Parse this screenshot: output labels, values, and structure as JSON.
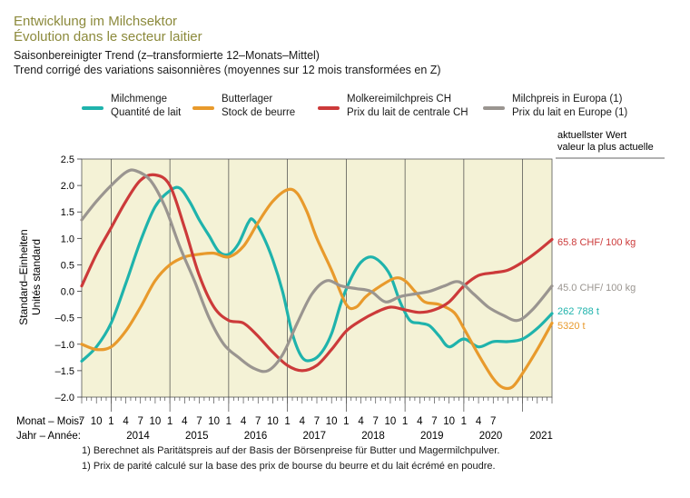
{
  "header": {
    "title_de": "Entwicklung im Milchsektor",
    "title_fr": "Évolution dans le secteur laitier",
    "subtitle_de": "Saisonbereinigter Trend (z–transformierte 12–Monats–Mittel)",
    "subtitle_fr": "Trend corrigé des variations saisonnières (moyennes sur 12 mois transformées en Z)"
  },
  "legend": [
    {
      "de": "Milchmenge",
      "fr": "Quantité de lait",
      "color": "#1fb3ac"
    },
    {
      "de": "Butterlager",
      "fr": "Stock de beurre",
      "color": "#e89a2c"
    },
    {
      "de": "Molkereimilchpreis CH",
      "fr": "Prix du lait de centrale CH",
      "color": "#cc3a3a"
    },
    {
      "de": "Milchpreis in Europa (1)",
      "fr": "Prix du lait en Europe (1)",
      "color": "#9a9590"
    }
  ],
  "current_header": {
    "de": "aktuellster Wert",
    "fr": "valeur la plus actuelle"
  },
  "end_labels": {
    "molkerei": "65.8 CHF/ 100 kg",
    "europa": "45.0 CHF/ 100 kg",
    "milchmenge": "262 788 t",
    "butter": "5320 t"
  },
  "axis": {
    "ylabel_de": "Standard–Einheiten",
    "ylabel_fr": "Unités standard",
    "month_caption": "Monat – Mois:",
    "year_caption": "Jahr – Année:",
    "month_ticks": [
      "7",
      "10",
      "1",
      "4",
      "7",
      "10",
      "1",
      "4",
      "7",
      "10",
      "1",
      "4",
      "7",
      "10",
      "1",
      "4",
      "7",
      "10",
      "1",
      "4",
      "7",
      "10",
      "1",
      "4",
      "7",
      "10",
      "1",
      "4",
      "7"
    ],
    "years": [
      "2014",
      "2015",
      "2016",
      "2017",
      "2018",
      "2019",
      "2020",
      "2021"
    ]
  },
  "footnotes": [
    "1)   Berechnet als Paritätspreis auf der Basis der Börsenpreise für Butter und Magermilchpulver.",
    "1)   Prix de parité calculé sur la base des prix de bourse du beurre et du lait écrémé en poudre."
  ],
  "chart_data": {
    "type": "line",
    "ylim": [
      -2.0,
      2.5
    ],
    "yticks": [
      "2.5",
      "2.0",
      "1.5",
      "1.0",
      "0.5",
      "0.0",
      "–0.5",
      "–1.0",
      "–1.5",
      "–2.0"
    ],
    "x_range": [
      "2013-07",
      "2021-07"
    ],
    "grid": false,
    "background": "#f4f2d6",
    "series": [
      {
        "name": "Milchmenge / Quantité de lait",
        "color": "#1fb3ac",
        "points": [
          [
            "2013-07",
            -1.32
          ],
          [
            "2013-10",
            -1.05
          ],
          [
            "2014-01",
            -0.6
          ],
          [
            "2014-04",
            0.15
          ],
          [
            "2014-07",
            0.95
          ],
          [
            "2014-10",
            1.6
          ],
          [
            "2015-01",
            1.9
          ],
          [
            "2015-03",
            1.95
          ],
          [
            "2015-05",
            1.7
          ],
          [
            "2015-07",
            1.35
          ],
          [
            "2015-09",
            1.05
          ],
          [
            "2015-11",
            0.75
          ],
          [
            "2016-01",
            0.7
          ],
          [
            "2016-03",
            0.9
          ],
          [
            "2016-05",
            1.3
          ],
          [
            "2016-06",
            1.35
          ],
          [
            "2016-08",
            1.05
          ],
          [
            "2016-10",
            0.6
          ],
          [
            "2016-12",
            0.0
          ],
          [
            "2017-02",
            -0.8
          ],
          [
            "2017-04",
            -1.25
          ],
          [
            "2017-06",
            -1.3
          ],
          [
            "2017-08",
            -1.15
          ],
          [
            "2017-10",
            -0.8
          ],
          [
            "2017-12",
            -0.2
          ],
          [
            "2018-02",
            0.25
          ],
          [
            "2018-04",
            0.55
          ],
          [
            "2018-06",
            0.65
          ],
          [
            "2018-08",
            0.55
          ],
          [
            "2018-10",
            0.3
          ],
          [
            "2018-12",
            -0.2
          ],
          [
            "2019-02",
            -0.55
          ],
          [
            "2019-04",
            -0.6
          ],
          [
            "2019-06",
            -0.65
          ],
          [
            "2019-08",
            -0.85
          ],
          [
            "2019-10",
            -1.05
          ],
          [
            "2020-01",
            -0.9
          ],
          [
            "2020-04",
            -1.05
          ],
          [
            "2020-07",
            -0.95
          ],
          [
            "2020-10",
            -0.95
          ],
          [
            "2021-01",
            -0.9
          ],
          [
            "2021-04",
            -0.7
          ],
          [
            "2021-07",
            -0.42
          ]
        ]
      },
      {
        "name": "Butterlager / Stock de beurre",
        "color": "#e89a2c",
        "points": [
          [
            "2013-07",
            -1.0
          ],
          [
            "2013-10",
            -1.1
          ],
          [
            "2014-01",
            -1.05
          ],
          [
            "2014-04",
            -0.75
          ],
          [
            "2014-07",
            -0.3
          ],
          [
            "2014-10",
            0.2
          ],
          [
            "2015-01",
            0.5
          ],
          [
            "2015-04",
            0.65
          ],
          [
            "2015-07",
            0.7
          ],
          [
            "2015-10",
            0.72
          ],
          [
            "2016-01",
            0.65
          ],
          [
            "2016-04",
            0.85
          ],
          [
            "2016-07",
            1.3
          ],
          [
            "2016-10",
            1.7
          ],
          [
            "2017-01",
            1.92
          ],
          [
            "2017-03",
            1.85
          ],
          [
            "2017-05",
            1.5
          ],
          [
            "2017-07",
            1.0
          ],
          [
            "2017-10",
            0.4
          ],
          [
            "2018-01",
            -0.25
          ],
          [
            "2018-03",
            -0.3
          ],
          [
            "2018-05",
            -0.1
          ],
          [
            "2018-08",
            0.1
          ],
          [
            "2018-11",
            0.25
          ],
          [
            "2019-01",
            0.2
          ],
          [
            "2019-03",
            0.0
          ],
          [
            "2019-05",
            -0.2
          ],
          [
            "2019-08",
            -0.25
          ],
          [
            "2019-11",
            -0.4
          ],
          [
            "2020-01",
            -0.7
          ],
          [
            "2020-04",
            -1.2
          ],
          [
            "2020-07",
            -1.65
          ],
          [
            "2020-09",
            -1.82
          ],
          [
            "2020-11",
            -1.8
          ],
          [
            "2021-01",
            -1.55
          ],
          [
            "2021-04",
            -1.1
          ],
          [
            "2021-07",
            -0.6
          ]
        ]
      },
      {
        "name": "Molkereimilchpreis CH / Prix du lait de centrale CH",
        "color": "#cc3a3a",
        "points": [
          [
            "2013-07",
            0.1
          ],
          [
            "2013-10",
            0.7
          ],
          [
            "2014-01",
            1.2
          ],
          [
            "2014-04",
            1.7
          ],
          [
            "2014-07",
            2.1
          ],
          [
            "2014-10",
            2.2
          ],
          [
            "2015-01",
            2.0
          ],
          [
            "2015-04",
            1.2
          ],
          [
            "2015-07",
            0.3
          ],
          [
            "2015-10",
            -0.3
          ],
          [
            "2016-01",
            -0.55
          ],
          [
            "2016-04",
            -0.6
          ],
          [
            "2016-07",
            -0.85
          ],
          [
            "2016-10",
            -1.15
          ],
          [
            "2017-01",
            -1.4
          ],
          [
            "2017-04",
            -1.5
          ],
          [
            "2017-07",
            -1.4
          ],
          [
            "2017-10",
            -1.1
          ],
          [
            "2018-01",
            -0.75
          ],
          [
            "2018-04",
            -0.55
          ],
          [
            "2018-07",
            -0.4
          ],
          [
            "2018-10",
            -0.3
          ],
          [
            "2019-01",
            -0.35
          ],
          [
            "2019-04",
            -0.4
          ],
          [
            "2019-07",
            -0.35
          ],
          [
            "2019-10",
            -0.2
          ],
          [
            "2020-01",
            0.1
          ],
          [
            "2020-04",
            0.3
          ],
          [
            "2020-07",
            0.35
          ],
          [
            "2020-10",
            0.4
          ],
          [
            "2021-01",
            0.55
          ],
          [
            "2021-04",
            0.75
          ],
          [
            "2021-07",
            0.98
          ]
        ]
      },
      {
        "name": "Milchpreis in Europa / Prix du lait en Europe",
        "color": "#9a9590",
        "points": [
          [
            "2013-07",
            1.35
          ],
          [
            "2013-10",
            1.7
          ],
          [
            "2014-01",
            2.0
          ],
          [
            "2014-04",
            2.25
          ],
          [
            "2014-06",
            2.28
          ],
          [
            "2014-09",
            2.1
          ],
          [
            "2014-12",
            1.6
          ],
          [
            "2015-03",
            0.85
          ],
          [
            "2015-06",
            0.2
          ],
          [
            "2015-09",
            -0.5
          ],
          [
            "2015-12",
            -1.0
          ],
          [
            "2016-03",
            -1.25
          ],
          [
            "2016-06",
            -1.45
          ],
          [
            "2016-09",
            -1.5
          ],
          [
            "2016-12",
            -1.2
          ],
          [
            "2017-03",
            -0.6
          ],
          [
            "2017-06",
            -0.05
          ],
          [
            "2017-09",
            0.2
          ],
          [
            "2017-12",
            0.1
          ],
          [
            "2018-03",
            0.05
          ],
          [
            "2018-06",
            0.0
          ],
          [
            "2018-09",
            -0.2
          ],
          [
            "2018-12",
            -0.1
          ],
          [
            "2019-03",
            -0.05
          ],
          [
            "2019-06",
            0.0
          ],
          [
            "2019-09",
            0.1
          ],
          [
            "2019-12",
            0.18
          ],
          [
            "2020-03",
            -0.05
          ],
          [
            "2020-06",
            -0.3
          ],
          [
            "2020-09",
            -0.45
          ],
          [
            "2020-12",
            -0.55
          ],
          [
            "2021-03",
            -0.35
          ],
          [
            "2021-07",
            0.1
          ]
        ]
      }
    ]
  }
}
